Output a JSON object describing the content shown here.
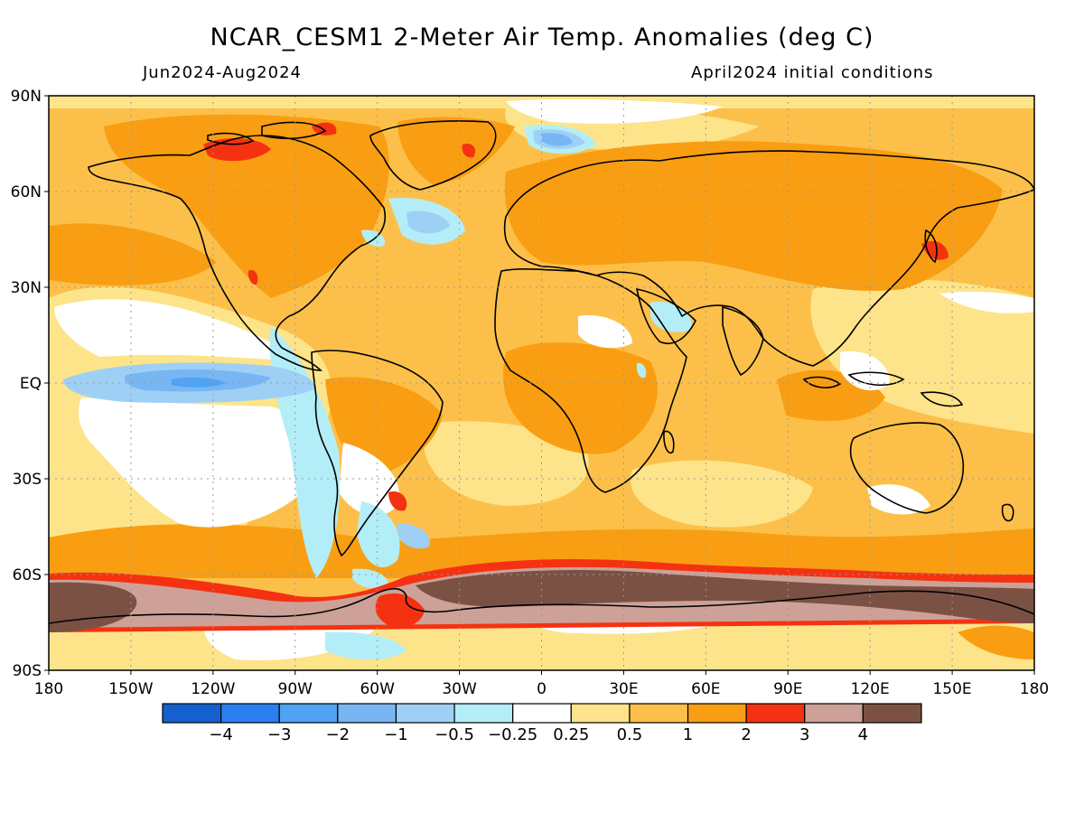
{
  "title": "NCAR_CESM1 2-Meter Air Temp. Anomalies (deg C)",
  "subtitle_left": "Jun2024-Aug2024",
  "subtitle_right": "April2024 initial conditions",
  "map": {
    "projection": "equirectangular",
    "lon_range": [
      -180,
      180
    ],
    "lat_range": [
      -90,
      90
    ],
    "gridlines": "dotted",
    "lat_ticks": [
      {
        "lat": 90,
        "label": "90N"
      },
      {
        "lat": 60,
        "label": "60N"
      },
      {
        "lat": 30,
        "label": "30N"
      },
      {
        "lat": 0,
        "label": "EQ"
      },
      {
        "lat": -30,
        "label": "30S"
      },
      {
        "lat": -60,
        "label": "60S"
      },
      {
        "lat": -90,
        "label": "90S"
      }
    ],
    "lon_ticks": [
      {
        "lon": -180,
        "label": "180"
      },
      {
        "lon": -150,
        "label": "150W"
      },
      {
        "lon": -120,
        "label": "120W"
      },
      {
        "lon": -90,
        "label": "90W"
      },
      {
        "lon": -60,
        "label": "60W"
      },
      {
        "lon": -30,
        "label": "30W"
      },
      {
        "lon": 0,
        "label": "0"
      },
      {
        "lon": 30,
        "label": "30E"
      },
      {
        "lon": 60,
        "label": "60E"
      },
      {
        "lon": 90,
        "label": "90E"
      },
      {
        "lon": 120,
        "label": "120E"
      },
      {
        "lon": 150,
        "label": "150E"
      },
      {
        "lon": 180,
        "label": "180"
      }
    ]
  },
  "colorbar": {
    "colors": [
      "#1560d0",
      "#2a7ff0",
      "#4ea3f5",
      "#78b6f3",
      "#9ed0f6",
      "#b3eef8",
      "#ffffff",
      "#fde48a",
      "#fcc04a",
      "#f99e12",
      "#f43212",
      "#cda197",
      "#7b5144"
    ],
    "labels": [
      "-4",
      "-3",
      "-2",
      "-1",
      "-0.5",
      "-0.25",
      "0.25",
      "0.5",
      "1",
      "2",
      "3",
      "4"
    ]
  }
}
